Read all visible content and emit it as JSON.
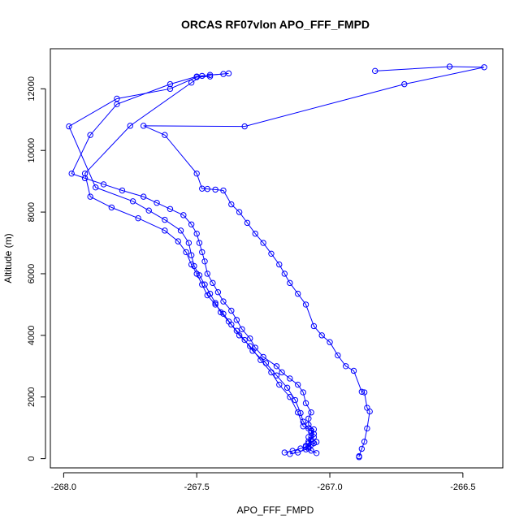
{
  "chart_data": {
    "type": "line",
    "title": "ORCAS RF07vlon APO_FFF_FMPD",
    "xlabel": "APO_FFF_FMPD",
    "ylabel": "Altitude (m)",
    "xlim": [
      -268.05,
      -266.35
    ],
    "ylim": [
      -300,
      13300
    ],
    "x_ticks": [
      -268.0,
      -267.5,
      -267.0,
      -266.5
    ],
    "x_tick_labels": [
      "-268.0",
      "-267.5",
      "-267.0",
      "-266.5"
    ],
    "y_ticks": [
      0,
      2000,
      4000,
      6000,
      8000,
      10000,
      12000
    ],
    "y_tick_labels": [
      "0",
      "2000",
      "4000",
      "6000",
      "8000",
      "10000",
      "12000"
    ],
    "grid": false,
    "legend": "none",
    "marker": "open-circle",
    "line_color": "#0000ff",
    "series": [
      {
        "x": [
          -267.15,
          -267.12,
          -267.09,
          -267.08,
          -267.07,
          -267.06,
          -267.05,
          -267.08,
          -267.07,
          -267.06,
          -267.08,
          -267.08,
          -267.07,
          -267.09,
          -267.1,
          -267.12,
          -267.15,
          -267.18,
          -267.2,
          -267.25,
          -267.28,
          -267.3,
          -267.33,
          -267.35,
          -267.37,
          -267.4,
          -267.42,
          -267.44,
          -267.46,
          -267.47,
          -267.48,
          -267.49,
          -267.5,
          -267.52,
          -267.55,
          -267.6,
          -267.65,
          -267.7,
          -267.78,
          -267.85,
          -267.92,
          -267.97,
          -267.9,
          -267.8,
          -267.6,
          -267.5,
          -267.45,
          -267.4
        ],
        "y": [
          150,
          200,
          300,
          380,
          450,
          500,
          540,
          700,
          850,
          950,
          1100,
          1300,
          1500,
          1800,
          2150,
          2400,
          2600,
          2800,
          3000,
          3300,
          3600,
          3900,
          4200,
          4500,
          4800,
          5100,
          5400,
          5700,
          6000,
          6400,
          6700,
          7000,
          7300,
          7600,
          7900,
          8100,
          8300,
          8500,
          8700,
          8900,
          9100,
          9250,
          10500,
          11500,
          12150,
          12400,
          12450,
          12480
        ]
      },
      {
        "x": [
          -267.05,
          -267.07,
          -267.08,
          -267.09,
          -267.08,
          -267.07,
          -267.06,
          -267.08,
          -267.1,
          -267.11,
          -267.13,
          -267.16,
          -267.2,
          -267.24,
          -267.29,
          -267.32,
          -267.35,
          -267.38,
          -267.41,
          -267.43,
          -267.45,
          -267.47,
          -267.49,
          -267.51,
          -267.52,
          -267.53,
          -267.56,
          -267.62,
          -267.68,
          -267.74,
          -267.88,
          -267.98,
          -267.8,
          -267.6,
          -267.5,
          -267.45
        ],
        "y": [
          180,
          260,
          330,
          420,
          500,
          620,
          800,
          980,
          1200,
          1480,
          1900,
          2300,
          2700,
          3100,
          3500,
          3850,
          4150,
          4450,
          4750,
          5050,
          5350,
          5650,
          5950,
          6250,
          6600,
          7000,
          7400,
          7750,
          8050,
          8350,
          8800,
          10780,
          11680,
          12000,
          12380,
          12400
        ]
      },
      {
        "x": [
          -267.17,
          -267.14,
          -267.11,
          -267.09,
          -267.07,
          -267.08,
          -267.06,
          -267.07,
          -267.1,
          -267.12,
          -267.15,
          -267.19,
          -267.22,
          -267.26,
          -267.3,
          -267.34,
          -267.37,
          -267.4,
          -267.43,
          -267.46,
          -267.48,
          -267.5,
          -267.52,
          -267.54,
          -267.57,
          -267.62,
          -267.72,
          -267.82,
          -267.9,
          -267.92,
          -267.75,
          -267.52,
          -267.48,
          -267.38
        ],
        "y": [
          200,
          250,
          330,
          380,
          450,
          560,
          700,
          900,
          1050,
          1500,
          2000,
          2400,
          2800,
          3200,
          3650,
          4000,
          4350,
          4700,
          5000,
          5300,
          5650,
          6000,
          6300,
          6700,
          7050,
          7400,
          7800,
          8150,
          8500,
          9250,
          10800,
          12200,
          12420,
          12500
        ]
      },
      {
        "x": [
          -266.89,
          -266.89,
          -266.88,
          -266.87,
          -266.86,
          -266.85,
          -266.86,
          -266.87,
          -266.88,
          -266.91,
          -266.94,
          -266.97,
          -267.0,
          -267.03,
          -267.06,
          -267.09,
          -267.12,
          -267.15,
          -267.17,
          -267.19,
          -267.22,
          -267.25,
          -267.28,
          -267.31,
          -267.34,
          -267.37,
          -267.4,
          -267.43,
          -267.46,
          -267.48,
          -267.5,
          -267.62,
          -267.7,
          -267.32,
          -266.72,
          -266.42,
          -266.55,
          -266.83
        ],
        "y": [
          50,
          80,
          320,
          550,
          980,
          1530,
          1650,
          2150,
          2170,
          2850,
          3000,
          3350,
          3780,
          4000,
          4300,
          5000,
          5350,
          5700,
          6000,
          6300,
          6650,
          7000,
          7300,
          7650,
          8000,
          8250,
          8700,
          8730,
          8750,
          8760,
          9250,
          10500,
          10800,
          10780,
          12150,
          12700,
          12720,
          12580
        ]
      }
    ]
  }
}
